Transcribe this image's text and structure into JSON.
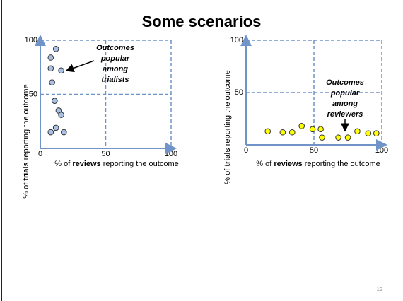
{
  "title": "Some scenarios",
  "page_number": "12",
  "chart_data": [
    {
      "type": "scatter",
      "color": "#a9c1e6",
      "x_label": [
        "% of ",
        "reviews",
        " reporting the outcome"
      ],
      "y_label": [
        "% of ",
        "trials",
        " reporting the outcome"
      ],
      "annotation": [
        "Outcomes",
        "popular",
        "among",
        "trialists"
      ],
      "x": [
        12,
        8,
        16,
        8,
        9,
        11,
        14,
        16,
        8,
        12,
        18
      ],
      "values": [
        92,
        84,
        72,
        74,
        61,
        44,
        35,
        31,
        15,
        19,
        15
      ],
      "xlim": [
        0,
        100
      ],
      "ylim": [
        0,
        100
      ],
      "xticks": [
        0,
        50,
        100
      ],
      "yticks": [
        50,
        100
      ],
      "grid": true
    },
    {
      "type": "scatter",
      "color": "#ffff00",
      "x_label": [
        "% of ",
        "reviews",
        " reporting the outcome"
      ],
      "y_label": [
        "% of ",
        "trials",
        " reporting the outcome"
      ],
      "annotation": [
        "Outcomes",
        "popular",
        "among",
        "reviewers"
      ],
      "x": [
        16,
        27,
        34,
        41,
        49,
        55,
        56,
        68,
        75,
        82,
        90,
        96
      ],
      "values": [
        13,
        12,
        12,
        18,
        15,
        15,
        7,
        7,
        7,
        13,
        11,
        11
      ],
      "xlim": [
        0,
        100
      ],
      "ylim": [
        0,
        100
      ],
      "xticks": [
        0,
        50,
        100
      ],
      "yticks": [
        50,
        100
      ],
      "grid": true
    }
  ]
}
